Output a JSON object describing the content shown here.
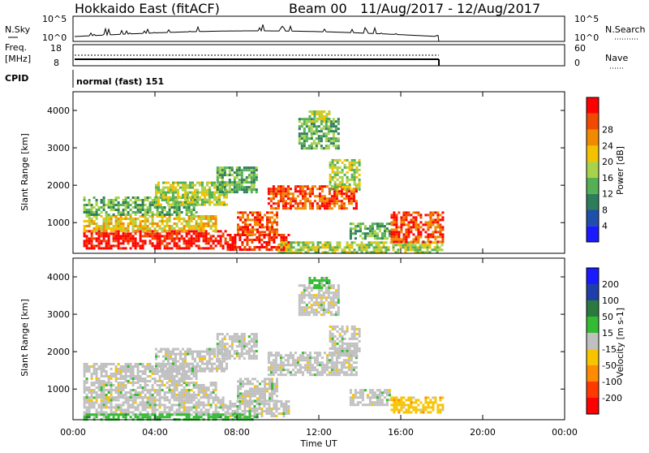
{
  "header": {
    "station": "Hokkaido East (fitACF)",
    "beam": "Beam 00",
    "date_range": "11/Aug/2017 - 12/Aug/2017"
  },
  "nsky_panel": {
    "left_label": "N.Sky",
    "left_ticks": [
      "10^5",
      "10^0"
    ],
    "right_ticks": [
      "10^5",
      "10^0"
    ],
    "right_label": "N.Search"
  },
  "freq_panel": {
    "left_label_1": "Freq.",
    "left_label_2": "[MHz]",
    "left_ticks": [
      "18",
      "8"
    ],
    "right_ticks": [
      "60",
      "0"
    ],
    "right_label": "Nave"
  },
  "cpid": {
    "label": "CPID",
    "mode": "normal (fast) 151"
  },
  "x_axis": {
    "ticks": [
      "00:00",
      "04:00",
      "08:00",
      "12:00",
      "16:00",
      "20:00",
      "00:00"
    ],
    "label": "Time UT"
  },
  "colors": {
    "power_scale": [
      "#1a1aff",
      "#1f4fa8",
      "#2e7d5a",
      "#55b055",
      "#a8d24a",
      "#f2c200",
      "#f08a00",
      "#f04a00",
      "#ff0000"
    ],
    "velocity_scale": [
      "#ff0000",
      "#ff3a00",
      "#ff8c00",
      "#f7c400",
      "#c0c0c0",
      "#33bb33",
      "#2a7a40",
      "#1f3fa8",
      "#1a1aff"
    ]
  },
  "chart_data": [
    {
      "type": "heatmap",
      "name": "power",
      "ylabel": "Slant Range [km]",
      "xlabel": "Time UT",
      "yticks": [
        1000,
        2000,
        3000,
        4000
      ],
      "ylim": [
        180,
        4500
      ],
      "xlim": [
        0,
        24
      ],
      "colorbar": {
        "label": "Power [dB]",
        "ticks": [
          "4",
          "8",
          "12",
          "16",
          "20",
          "24",
          "28"
        ]
      },
      "data_end_hour": 18,
      "echo_regions": [
        {
          "t0": 0.5,
          "t1": 7.5,
          "r0": 300,
          "r1": 800,
          "level": 8
        },
        {
          "t0": 0.5,
          "t1": 7.0,
          "r0": 800,
          "r1": 1200,
          "level": 5
        },
        {
          "t0": 0.5,
          "t1": 6.0,
          "r0": 1200,
          "r1": 1700,
          "level": 3
        },
        {
          "t0": 4.0,
          "t1": 7.5,
          "r0": 1500,
          "r1": 2100,
          "level": 4
        },
        {
          "t0": 7.0,
          "t1": 9.0,
          "r0": 1800,
          "r1": 2500,
          "level": 3
        },
        {
          "t0": 7.5,
          "t1": 10.5,
          "r0": 300,
          "r1": 700,
          "level": 8
        },
        {
          "t0": 8.0,
          "t1": 10.0,
          "r0": 700,
          "r1": 1300,
          "level": 7
        },
        {
          "t0": 9.5,
          "t1": 13.8,
          "r0": 1400,
          "r1": 2000,
          "level": 7
        },
        {
          "t0": 12.5,
          "t1": 14.0,
          "r0": 1900,
          "r1": 2700,
          "level": 4
        },
        {
          "t0": 11.0,
          "t1": 13.0,
          "r0": 3000,
          "r1": 3800,
          "level": 3
        },
        {
          "t0": 11.5,
          "t1": 12.5,
          "r0": 3700,
          "r1": 4000,
          "level": 4
        },
        {
          "t0": 10.0,
          "t1": 18.0,
          "r0": 200,
          "r1": 500,
          "level": 4
        },
        {
          "t0": 13.5,
          "t1": 15.5,
          "r0": 600,
          "r1": 1000,
          "level": 3
        },
        {
          "t0": 15.5,
          "t1": 18.0,
          "r0": 500,
          "r1": 1300,
          "level": 7
        }
      ]
    },
    {
      "type": "heatmap",
      "name": "velocity",
      "ylabel": "Slant Range [km]",
      "xlabel": "Time UT",
      "yticks": [
        1000,
        2000,
        3000,
        4000
      ],
      "ylim": [
        180,
        4500
      ],
      "xlim": [
        0,
        24
      ],
      "colorbar": {
        "label": "Velocity [m s-1]",
        "ticks": [
          "-200",
          "-100",
          "-50",
          "-15",
          "15",
          "50",
          "100",
          "200"
        ]
      },
      "data_end_hour": 18,
      "echo_regions": [
        {
          "t0": 0.5,
          "t1": 7.5,
          "r0": 300,
          "r1": 800,
          "level": 4
        },
        {
          "t0": 0.5,
          "t1": 7.0,
          "r0": 800,
          "r1": 1200,
          "level": 4
        },
        {
          "t0": 0.5,
          "t1": 6.0,
          "r0": 1200,
          "r1": 1700,
          "level": 4
        },
        {
          "t0": 4.0,
          "t1": 7.5,
          "r0": 1500,
          "r1": 2100,
          "level": 4
        },
        {
          "t0": 7.0,
          "t1": 9.0,
          "r0": 1800,
          "r1": 2500,
          "level": 4
        },
        {
          "t0": 7.5,
          "t1": 10.5,
          "r0": 300,
          "r1": 700,
          "level": 4
        },
        {
          "t0": 8.0,
          "t1": 10.0,
          "r0": 700,
          "r1": 1300,
          "level": 4
        },
        {
          "t0": 9.5,
          "t1": 13.8,
          "r0": 1400,
          "r1": 2000,
          "level": 4
        },
        {
          "t0": 12.5,
          "t1": 14.0,
          "r0": 1900,
          "r1": 2700,
          "level": 4
        },
        {
          "t0": 11.0,
          "t1": 13.0,
          "r0": 3000,
          "r1": 3800,
          "level": 4
        },
        {
          "t0": 11.5,
          "t1": 12.5,
          "r0": 3700,
          "r1": 4000,
          "level": 5
        },
        {
          "t0": 0.5,
          "t1": 9.0,
          "r0": 200,
          "r1": 350,
          "level": 5
        },
        {
          "t0": 13.5,
          "t1": 15.5,
          "r0": 600,
          "r1": 1000,
          "level": 4
        },
        {
          "t0": 15.5,
          "t1": 18.0,
          "r0": 400,
          "r1": 800,
          "level": 3
        }
      ]
    }
  ]
}
